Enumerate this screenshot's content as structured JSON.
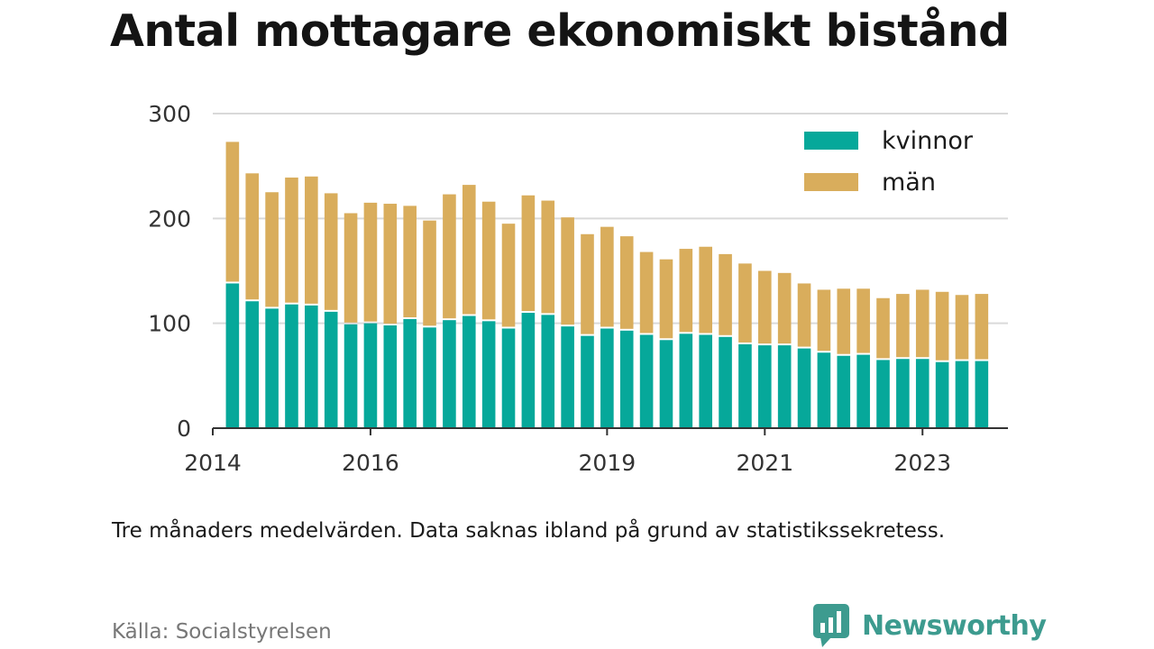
{
  "colors": {
    "kvinnor": "#06a89a",
    "man": "#d9ad5c",
    "grid": "#d9d9d9",
    "axis": "#333333",
    "tick_text": "#333333",
    "brand": "#3d9b8f",
    "source_text": "#777777"
  },
  "title": "Antal mottagare ekonomiskt bistånd",
  "note": "Tre månaders medelvärden. Data saknas ibland på grund av statistikssekretess.",
  "source": "Källa: Socialstyrelsen",
  "brand": {
    "name": "Newsworthy",
    "icon": "newsworthy-logo-icon"
  },
  "chart_data": {
    "type": "bar",
    "stacked": true,
    "title": "Antal mottagare ekonomiskt bistånd",
    "xlabel": "",
    "ylabel": "",
    "ylim": [
      0,
      300
    ],
    "yticks": [
      0,
      100,
      200,
      300
    ],
    "xlim": [
      "2014-01",
      "2024-02"
    ],
    "xticks": [
      "2014",
      "2016",
      "2019",
      "2021",
      "2023"
    ],
    "x_tick_dates": [
      "2014-01",
      "2016-01",
      "2019-01",
      "2021-01",
      "2023-01"
    ],
    "grid": true,
    "legend": {
      "placement": "top-right"
    },
    "x": [
      "2014-04",
      "2014-07",
      "2014-10",
      "2015-01",
      "2015-04",
      "2015-07",
      "2015-10",
      "2016-01",
      "2016-04",
      "2016-07",
      "2016-10",
      "2017-01",
      "2017-04",
      "2017-07",
      "2017-10",
      "2018-01",
      "2018-04",
      "2018-07",
      "2018-10",
      "2019-01",
      "2019-04",
      "2019-07",
      "2019-10",
      "2020-01",
      "2020-04",
      "2020-07",
      "2020-10",
      "2021-01",
      "2021-04",
      "2021-07",
      "2021-10",
      "2022-01",
      "2022-04",
      "2022-07",
      "2022-10",
      "2023-01",
      "2023-04",
      "2023-07",
      "2023-10"
    ],
    "series": [
      {
        "name": "kvinnor",
        "values": [
          138,
          121,
          114,
          118,
          117,
          111,
          99,
          100,
          98,
          104,
          96,
          103,
          107,
          102,
          95,
          110,
          108,
          97,
          88,
          95,
          93,
          89,
          84,
          90,
          89,
          87,
          80,
          79,
          79,
          76,
          72,
          69,
          70,
          65,
          66,
          66,
          63,
          64,
          64
        ]
      },
      {
        "name": "män",
        "values": [
          135,
          122,
          111,
          121,
          123,
          113,
          106,
          115,
          116,
          108,
          102,
          120,
          125,
          114,
          100,
          112,
          109,
          104,
          97,
          97,
          90,
          79,
          77,
          81,
          84,
          79,
          77,
          71,
          69,
          62,
          60,
          64,
          63,
          59,
          62,
          66,
          67,
          63,
          64
        ]
      }
    ]
  }
}
